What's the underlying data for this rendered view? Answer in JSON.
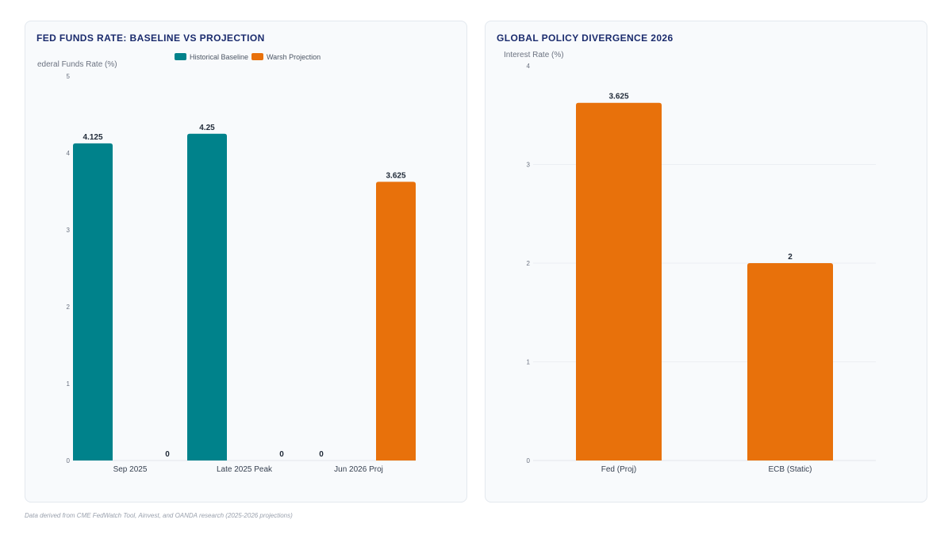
{
  "footnote": "Data derived from CME FedWatch Tool, Ainvest, and OANDA research (2025-2026 projections)",
  "colors": {
    "teal": "#00828b",
    "orange": "#e8710b",
    "title": "#1a2b6d",
    "axis": "#6b7280",
    "grid": "#e5e7eb"
  },
  "chart_data": [
    {
      "type": "bar",
      "title": "FED FUNDS RATE: BASELINE VS PROJECTION",
      "ylabel": "ederal Funds Rate (%)",
      "xlabel": "",
      "ylim": [
        0,
        5
      ],
      "yticks": [
        0,
        1,
        2,
        3,
        4,
        5
      ],
      "grid": false,
      "legend": "top-center",
      "categories": [
        "Sep 2025",
        "Late 2025 Peak",
        "Jun 2026 Proj"
      ],
      "series": [
        {
          "name": "Historical Baseline",
          "color": "#00828b",
          "values": [
            4.125,
            4.25,
            0
          ],
          "labels": [
            "4.125",
            "4.25",
            "0"
          ]
        },
        {
          "name": "Warsh Projection",
          "color": "#e8710b",
          "values": [
            0,
            0,
            3.625
          ],
          "labels": [
            "0",
            "0",
            "3.625"
          ]
        }
      ]
    },
    {
      "type": "bar",
      "title": "GLOBAL POLICY DIVERGENCE 2026",
      "ylabel": "Interest Rate (%)",
      "xlabel": "",
      "ylim": [
        0,
        4
      ],
      "yticks": [
        0,
        1,
        2,
        3,
        4
      ],
      "grid": true,
      "legend": "none",
      "categories": [
        "Fed (Proj)",
        "ECB (Static)"
      ],
      "series": [
        {
          "color": "#e8710b",
          "values": [
            3.625,
            2
          ],
          "labels": [
            "3.625",
            "2"
          ]
        }
      ]
    }
  ]
}
